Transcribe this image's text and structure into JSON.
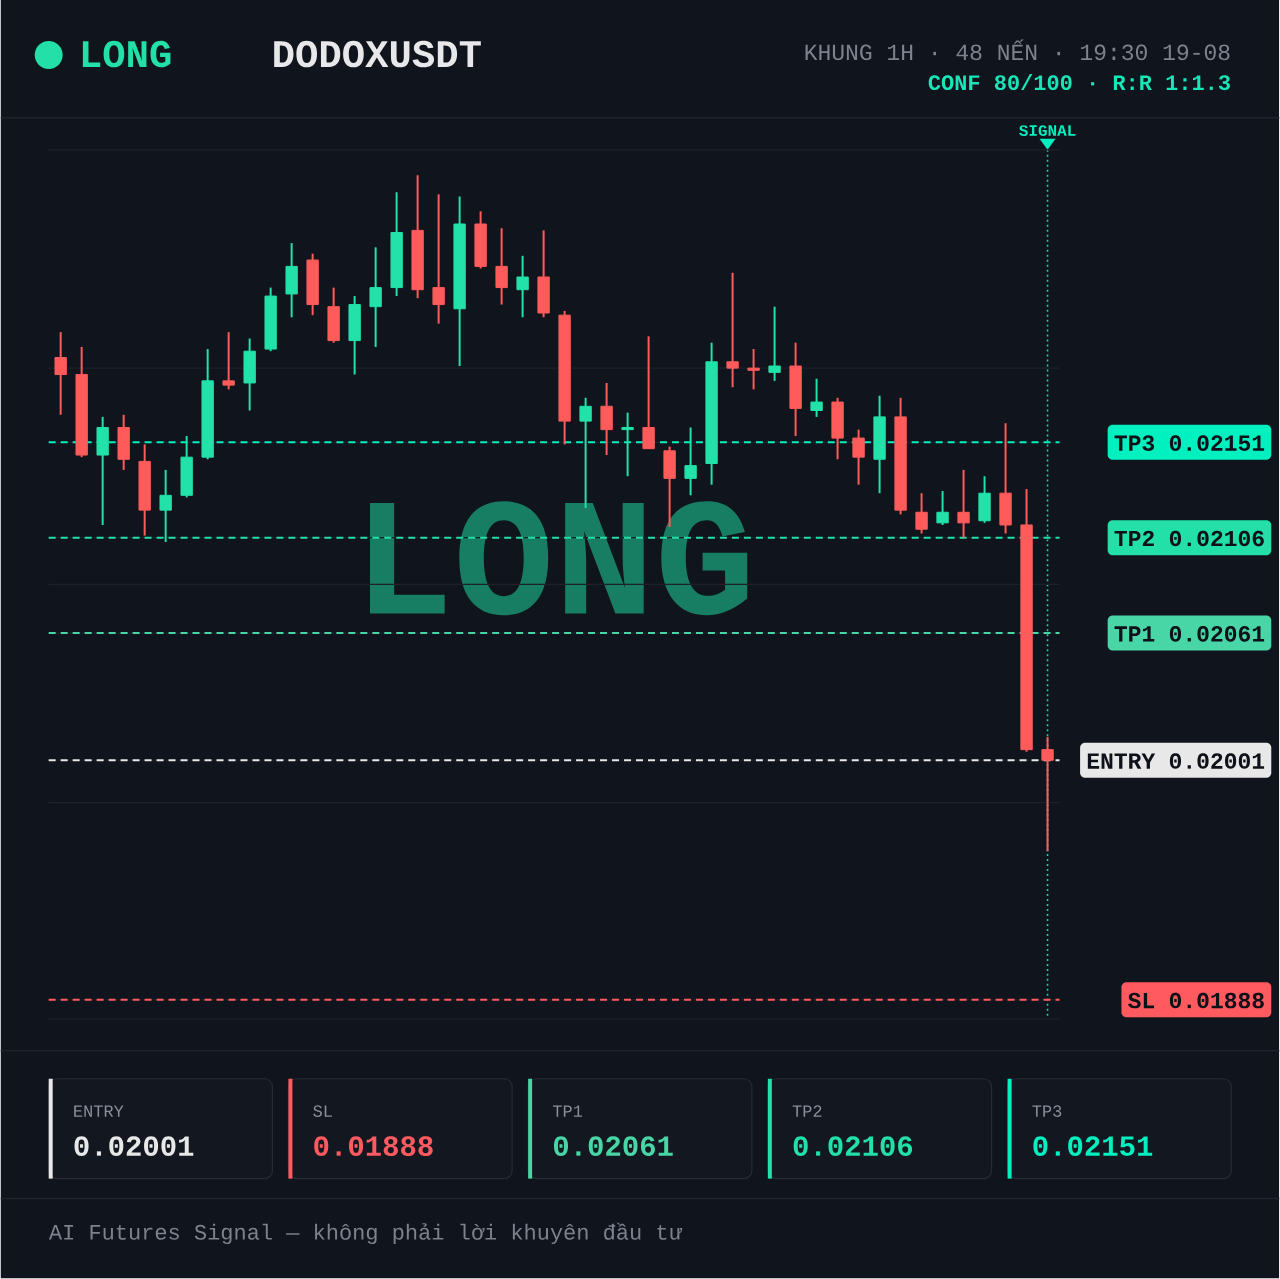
{
  "chart_data": {
    "type": "candlestick",
    "title": "LONG",
    "subtitle": "DODOXUSDT",
    "annotations": [
      "KHUNG 1H · 48 NẾN · 19:30 19-08",
      "CONF 80/100 · R:R 1:1.3",
      "AI Futures Signal — không phải lời khuyên đầu tư",
      "SIGNAL",
      "ENTRY",
      "0.02001",
      "SL",
      "0.01888",
      "TP1",
      "0.02061",
      "TP2",
      "0.02106",
      "TP3",
      "0.02151"
    ],
    "categories": [
      null,
      null,
      null,
      null,
      null,
      null,
      null,
      null,
      null,
      null,
      null,
      null,
      null,
      null,
      null,
      null,
      null,
      null,
      null,
      null,
      null,
      null,
      null,
      null,
      null,
      null,
      null,
      null,
      null,
      null,
      null,
      null,
      null,
      null,
      null,
      null,
      null,
      null,
      null,
      null,
      null,
      null,
      null,
      null,
      null,
      null,
      null,
      null
    ],
    "ohlc": [
      [
        0.02191,
        0.02203,
        0.02164,
        0.02183
      ],
      [
        0.02183,
        0.02196,
        0.02144,
        0.02145
      ],
      [
        0.02145,
        0.02163,
        0.02112,
        0.02158
      ],
      [
        0.02158,
        0.02164,
        0.02138,
        0.02143
      ],
      [
        0.02142,
        0.0215,
        0.02107,
        0.02119
      ],
      [
        0.02119,
        0.02138,
        0.02104,
        0.02126
      ],
      [
        0.02126,
        0.02154,
        0.02125,
        0.02144
      ],
      [
        0.02144,
        0.02195,
        0.02143,
        0.0218
      ],
      [
        0.0218,
        0.02203,
        0.02176,
        0.02178
      ],
      [
        0.02179,
        0.022,
        0.02166,
        0.02194
      ],
      [
        0.02195,
        0.02224,
        0.02194,
        0.0222
      ],
      [
        0.02221,
        0.02245,
        0.0221,
        0.02234
      ],
      [
        0.02237,
        0.0224,
        0.02211,
        0.02216
      ],
      [
        0.02215,
        0.02224,
        0.02198,
        0.02199
      ],
      [
        0.02199,
        0.0222,
        0.02183,
        0.02216
      ],
      [
        0.02215,
        0.02243,
        0.02196,
        0.02224
      ],
      [
        0.02224,
        0.02269,
        0.0222,
        0.0225
      ],
      [
        0.02251,
        0.02277,
        0.02219,
        0.02223
      ],
      [
        0.02224,
        0.02268,
        0.02207,
        0.02216
      ],
      [
        0.02214,
        0.02267,
        0.02187,
        0.02254
      ],
      [
        0.02254,
        0.0226,
        0.02233,
        0.02234
      ],
      [
        0.02234,
        0.02252,
        0.02216,
        0.02224
      ],
      [
        0.02223,
        0.02239,
        0.0221,
        0.02229
      ],
      [
        0.02229,
        0.02251,
        0.0221,
        0.02212
      ],
      [
        0.02211,
        0.02213,
        0.0215,
        0.02161
      ],
      [
        0.02161,
        0.02172,
        0.0212,
        0.02168
      ],
      [
        0.02168,
        0.02179,
        0.02145,
        0.02157
      ],
      [
        0.02157,
        0.02165,
        0.02135,
        0.02158
      ],
      [
        0.02158,
        0.02201,
        0.02148,
        0.02148
      ],
      [
        0.02147,
        0.02149,
        0.02111,
        0.02134
      ],
      [
        0.02134,
        0.02158,
        0.02126,
        0.0214
      ],
      [
        0.02141,
        0.02198,
        0.02131,
        0.02189
      ],
      [
        0.02189,
        0.02231,
        0.02177,
        0.02186
      ],
      [
        0.02186,
        0.02195,
        0.02176,
        0.02185
      ],
      [
        0.02184,
        0.02215,
        0.0218,
        0.02187
      ],
      [
        0.02187,
        0.02198,
        0.02154,
        0.02167
      ],
      [
        0.02166,
        0.02181,
        0.02163,
        0.0217
      ],
      [
        0.0217,
        0.02172,
        0.02143,
        0.02153
      ],
      [
        0.02153,
        0.02157,
        0.02131,
        0.02144
      ],
      [
        0.02143,
        0.02173,
        0.02127,
        0.02163
      ],
      [
        0.02163,
        0.02172,
        0.02117,
        0.02119
      ],
      [
        0.02118,
        0.02127,
        0.02108,
        0.0211
      ],
      [
        0.02113,
        0.02128,
        0.02112,
        0.02118
      ],
      [
        0.02118,
        0.02138,
        0.02106,
        0.02113
      ],
      [
        0.02114,
        0.02135,
        0.02113,
        0.02127
      ],
      [
        0.02127,
        0.0216,
        0.02108,
        0.02112
      ],
      [
        0.02112,
        0.02129,
        0.02005,
        0.02006
      ],
      [
        0.02006,
        0.02012,
        0.01958,
        0.02001
      ]
    ],
    "colors": [
      "#ff5b5b",
      "#ff5b5b",
      "#22e1a9",
      "#ff5b5b",
      "#ff5b5b",
      "#22e1a9",
      "#22e1a9",
      "#22e1a9",
      "#ff5b5b",
      "#22e1a9",
      "#22e1a9",
      "#22e1a9",
      "#ff5b5b",
      "#ff5b5b",
      "#22e1a9",
      "#22e1a9",
      "#22e1a9",
      "#ff5b5b",
      "#ff5b5b",
      "#22e1a9",
      "#ff5b5b",
      "#ff5b5b",
      "#22e1a9",
      "#ff5b5b",
      "#ff5b5b",
      "#22e1a9",
      "#ff5b5b",
      "#22e1a9",
      "#ff5b5b",
      "#ff5b5b",
      "#22e1a9",
      "#22e1a9",
      "#ff5b5b",
      "#ff5b5b",
      "#22e1a9",
      "#ff5b5b",
      "#22e1a9",
      "#ff5b5b",
      "#ff5b5b",
      "#22e1a9",
      "#ff5b5b",
      "#ff5b5b",
      "#22e1a9",
      "#ff5b5b",
      "#22e1a9",
      "#ff5b5b",
      "#ff5b5b",
      "#ff5b5b"
    ],
    "ylim": [
      0.01879,
      0.02289
    ],
    "yticks": [
      {
        "value": 0.01879,
        "label": null
      },
      0.01888,
      {
        "value": 0.01981,
        "label": null
      },
      0.02001,
      0.02061,
      {
        "value": 0.02084,
        "label": null
      },
      0.02106,
      0.02151,
      {
        "value": 0.02186,
        "label": null
      },
      {
        "value": 0.02289,
        "label": null
      }
    ],
    "grid": "y",
    "tick_labels": "y",
    "ref_lines": [
      {
        "axis": "y",
        "value": 0.02001,
        "label": "ENTRY",
        "color": "#e8e8e8",
        "line_style": "dashed"
      },
      {
        "axis": "y",
        "value": 0.01888,
        "label": "SL",
        "color": "#ff5a5f",
        "line_style": "dashed"
      },
      {
        "axis": "y",
        "value": 0.02061,
        "label": "TP1",
        "color": "#48d6a6",
        "line_style": "dashed"
      },
      {
        "axis": "y",
        "value": 0.02106,
        "label": "TP2",
        "color": "#22e0a8",
        "line_style": "dashed"
      },
      {
        "axis": "y",
        "value": 0.02151,
        "label": "TP3",
        "color": "#00f0c0",
        "line_style": "dashed"
      }
    ]
  }
}
